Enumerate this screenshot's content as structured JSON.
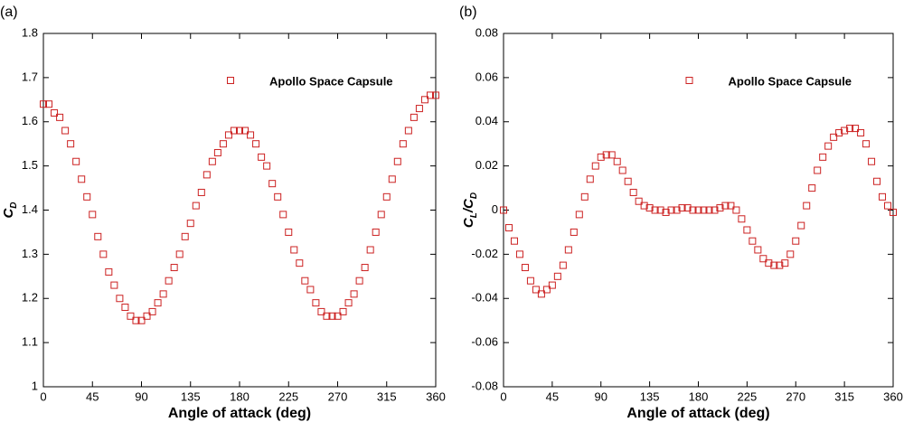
{
  "chart_data": [
    {
      "type": "scatter",
      "panel_label": "(a)",
      "xlabel": "Angle of attack (deg)",
      "ylabel": [
        "C",
        "D"
      ],
      "x": [
        0,
        5,
        10,
        15,
        20,
        25,
        30,
        35,
        40,
        45,
        50,
        55,
        60,
        65,
        70,
        75,
        80,
        85,
        90,
        95,
        100,
        105,
        110,
        115,
        120,
        125,
        130,
        135,
        140,
        145,
        150,
        155,
        160,
        165,
        170,
        175,
        180,
        185,
        190,
        195,
        200,
        205,
        210,
        215,
        220,
        225,
        230,
        235,
        240,
        245,
        250,
        255,
        260,
        265,
        270,
        275,
        280,
        285,
        290,
        295,
        300,
        305,
        310,
        315,
        320,
        325,
        330,
        335,
        340,
        345,
        350,
        355,
        360
      ],
      "series": [
        {
          "name": "Apollo Space Capsule",
          "color": "#cc2222",
          "values": [
            1.64,
            1.64,
            1.62,
            1.61,
            1.58,
            1.55,
            1.51,
            1.47,
            1.43,
            1.39,
            1.34,
            1.3,
            1.26,
            1.23,
            1.2,
            1.18,
            1.16,
            1.15,
            1.15,
            1.16,
            1.17,
            1.19,
            1.21,
            1.24,
            1.27,
            1.3,
            1.34,
            1.37,
            1.41,
            1.44,
            1.48,
            1.51,
            1.53,
            1.55,
            1.57,
            1.58,
            1.58,
            1.58,
            1.57,
            1.55,
            1.52,
            1.5,
            1.46,
            1.43,
            1.39,
            1.35,
            1.31,
            1.28,
            1.24,
            1.22,
            1.19,
            1.17,
            1.16,
            1.16,
            1.16,
            1.17,
            1.19,
            1.21,
            1.24,
            1.27,
            1.31,
            1.35,
            1.39,
            1.43,
            1.47,
            1.51,
            1.55,
            1.58,
            1.61,
            1.63,
            1.65,
            1.66,
            1.66
          ]
        }
      ],
      "xlim": [
        0,
        360
      ],
      "ylim": [
        1,
        1.8
      ],
      "xticks": [
        0,
        45,
        90,
        135,
        180,
        225,
        270,
        315,
        360
      ],
      "yticks": [
        1,
        1.1,
        1.2,
        1.3,
        1.4,
        1.5,
        1.6,
        1.7,
        1.8
      ],
      "legend": "upper center"
    },
    {
      "type": "scatter",
      "panel_label": "(b)",
      "xlabel": "Angle of attack (deg)",
      "ylabel": [
        "C",
        "L",
        "/C",
        "D"
      ],
      "x": [
        0,
        5,
        10,
        15,
        20,
        25,
        30,
        35,
        40,
        45,
        50,
        55,
        60,
        65,
        70,
        75,
        80,
        85,
        90,
        95,
        100,
        105,
        110,
        115,
        120,
        125,
        130,
        135,
        140,
        145,
        150,
        155,
        160,
        165,
        170,
        175,
        180,
        185,
        190,
        195,
        200,
        205,
        210,
        215,
        220,
        225,
        230,
        235,
        240,
        245,
        250,
        255,
        260,
        265,
        270,
        275,
        280,
        285,
        290,
        295,
        300,
        305,
        310,
        315,
        320,
        325,
        330,
        335,
        340,
        345,
        350,
        355,
        360
      ],
      "series": [
        {
          "name": "Apollo Space Capsule",
          "color": "#cc2222",
          "values": [
            0,
            -0.008,
            -0.014,
            -0.02,
            -0.026,
            -0.032,
            -0.036,
            -0.038,
            -0.036,
            -0.034,
            -0.03,
            -0.025,
            -0.018,
            -0.01,
            -0.002,
            0.006,
            0.014,
            0.02,
            0.024,
            0.025,
            0.025,
            0.022,
            0.018,
            0.013,
            0.008,
            0.004,
            0.002,
            0.001,
            0,
            0,
            -0.001,
            0,
            0,
            0.001,
            0.001,
            0,
            0,
            0,
            0,
            0,
            0.001,
            0.002,
            0.002,
            0,
            -0.004,
            -0.009,
            -0.014,
            -0.018,
            -0.022,
            -0.024,
            -0.025,
            -0.025,
            -0.024,
            -0.02,
            -0.014,
            -0.007,
            0.002,
            0.01,
            0.018,
            0.024,
            0.029,
            0.033,
            0.035,
            0.036,
            0.037,
            0.037,
            0.035,
            0.03,
            0.022,
            0.013,
            0.006,
            0.002,
            -0.001
          ]
        }
      ],
      "xlim": [
        0,
        360
      ],
      "ylim": [
        -0.08,
        0.08
      ],
      "xticks": [
        0,
        45,
        90,
        135,
        180,
        225,
        270,
        315,
        360
      ],
      "yticks": [
        -0.08,
        -0.06,
        -0.04,
        -0.02,
        0,
        0.02,
        0.04,
        0.06,
        0.08
      ],
      "legend": "upper center"
    }
  ]
}
